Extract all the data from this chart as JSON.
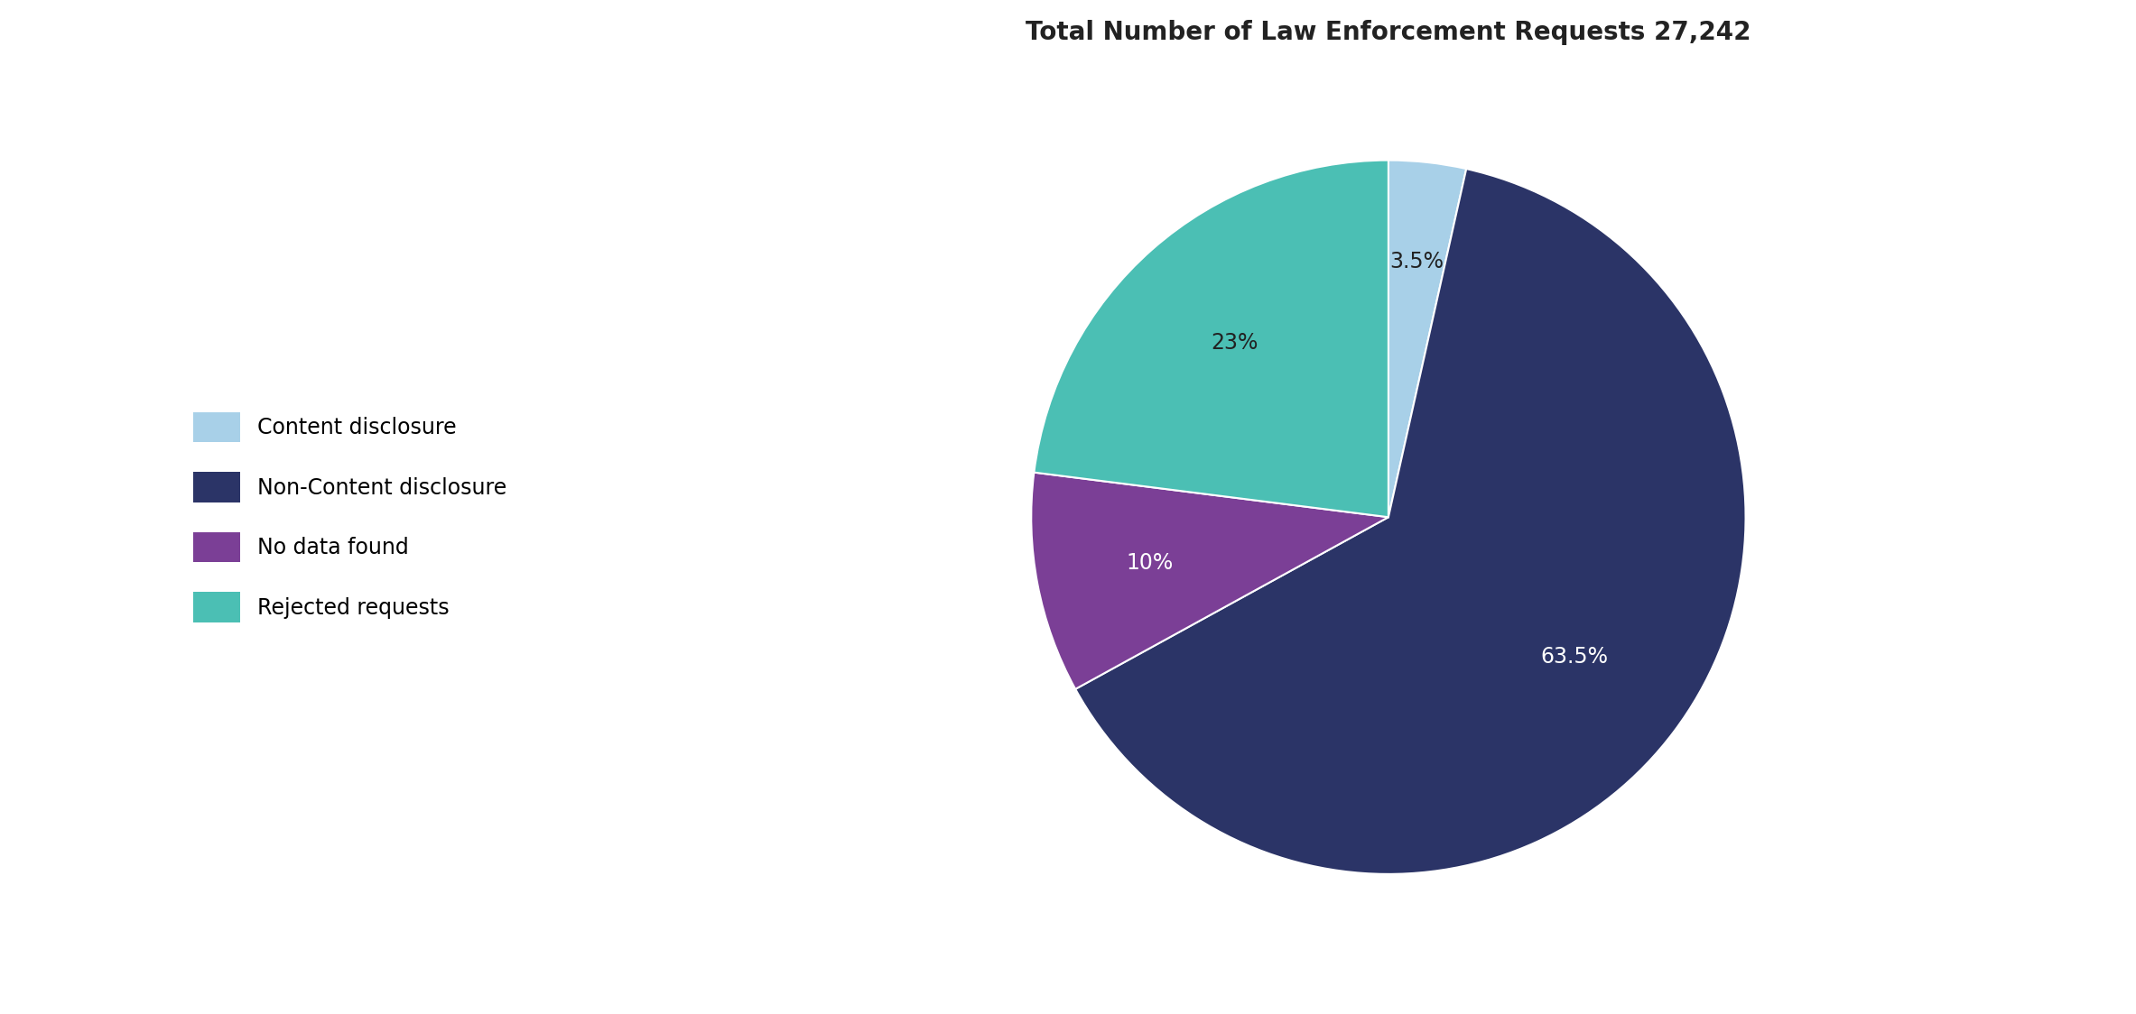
{
  "title": "Total Number of Law Enforcement Requests 27,242",
  "slices": [
    {
      "label": "Content disclosure",
      "value": 3.5,
      "color": "#a8d0e8"
    },
    {
      "label": "Non-Content disclosure",
      "value": 63.5,
      "color": "#2b3467"
    },
    {
      "label": "No data found",
      "value": 10.0,
      "color": "#7b3f96"
    },
    {
      "label": "Rejected requests",
      "value": 23.0,
      "color": "#4bbfb4"
    }
  ],
  "legend_order": [
    "Content disclosure",
    "Non-Content disclosure",
    "No data found",
    "Rejected requests"
  ],
  "pct_labels": [
    "3.5%",
    "63.5%",
    "10%",
    "23%"
  ],
  "pct_colors": [
    "#222222",
    "#ffffff",
    "#ffffff",
    "#222222"
  ],
  "title_fontsize": 20,
  "legend_fontsize": 17,
  "label_fontsize": 17,
  "background_color": "#ffffff",
  "startangle": 90
}
